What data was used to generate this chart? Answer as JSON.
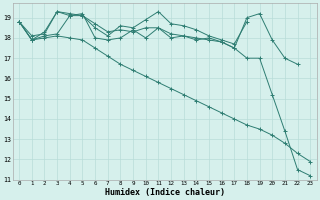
{
  "xlabel": "Humidex (Indice chaleur)",
  "bg_color": "#d6f0ec",
  "grid_color": "#b8ddd8",
  "line_color": "#2e7d72",
  "xlim": [
    -0.5,
    23.5
  ],
  "ylim": [
    11,
    19.7
  ],
  "yticks": [
    11,
    12,
    13,
    14,
    15,
    16,
    17,
    18,
    19
  ],
  "xticks": [
    0,
    1,
    2,
    3,
    4,
    5,
    6,
    7,
    8,
    9,
    10,
    11,
    12,
    13,
    14,
    15,
    16,
    17,
    18,
    19,
    20,
    21,
    22,
    23
  ],
  "series1_x": [
    0,
    1,
    2,
    3,
    4,
    5,
    6,
    7,
    8,
    9,
    10,
    11,
    12,
    13,
    14,
    15,
    16,
    17,
    18,
    19,
    20,
    21,
    22
  ],
  "series1_y": [
    18.8,
    17.9,
    18.1,
    18.2,
    19.1,
    19.2,
    18.0,
    17.9,
    18.0,
    18.4,
    18.0,
    18.5,
    18.0,
    18.1,
    17.9,
    18.0,
    17.8,
    17.5,
    19.0,
    19.2,
    17.9,
    17.0,
    16.7
  ],
  "series2_x": [
    0,
    1,
    2,
    3,
    4,
    5,
    6,
    7,
    8,
    9,
    10,
    11,
    12,
    13,
    14,
    15,
    16,
    17,
    18
  ],
  "series2_y": [
    18.8,
    17.9,
    18.3,
    19.3,
    19.1,
    19.1,
    18.5,
    18.1,
    18.6,
    18.5,
    18.9,
    19.3,
    18.7,
    18.6,
    18.4,
    18.1,
    17.9,
    17.7,
    18.8
  ],
  "series3_x": [
    0,
    1,
    2,
    3,
    4,
    5,
    6,
    7,
    8,
    9,
    10,
    11,
    12,
    13,
    14,
    15,
    16,
    17,
    18,
    19,
    20,
    21,
    22,
    23
  ],
  "series3_y": [
    18.8,
    18.1,
    18.2,
    19.3,
    19.2,
    19.1,
    18.7,
    18.3,
    18.4,
    18.3,
    18.5,
    18.5,
    18.2,
    18.1,
    18.0,
    17.9,
    17.8,
    17.5,
    17.0,
    17.0,
    15.2,
    13.4,
    11.5,
    11.2
  ],
  "series4_x": [
    0,
    1,
    2,
    3,
    4,
    5,
    6,
    7,
    8,
    9,
    10,
    11,
    12,
    13,
    14,
    15,
    16,
    17,
    18,
    19,
    20,
    21,
    22,
    23
  ],
  "series4_y": [
    18.8,
    17.9,
    18.0,
    18.1,
    18.0,
    17.9,
    17.5,
    17.1,
    16.7,
    16.4,
    16.1,
    15.8,
    15.5,
    15.2,
    14.9,
    14.6,
    14.3,
    14.0,
    13.7,
    13.5,
    13.2,
    12.8,
    12.3,
    11.9
  ]
}
